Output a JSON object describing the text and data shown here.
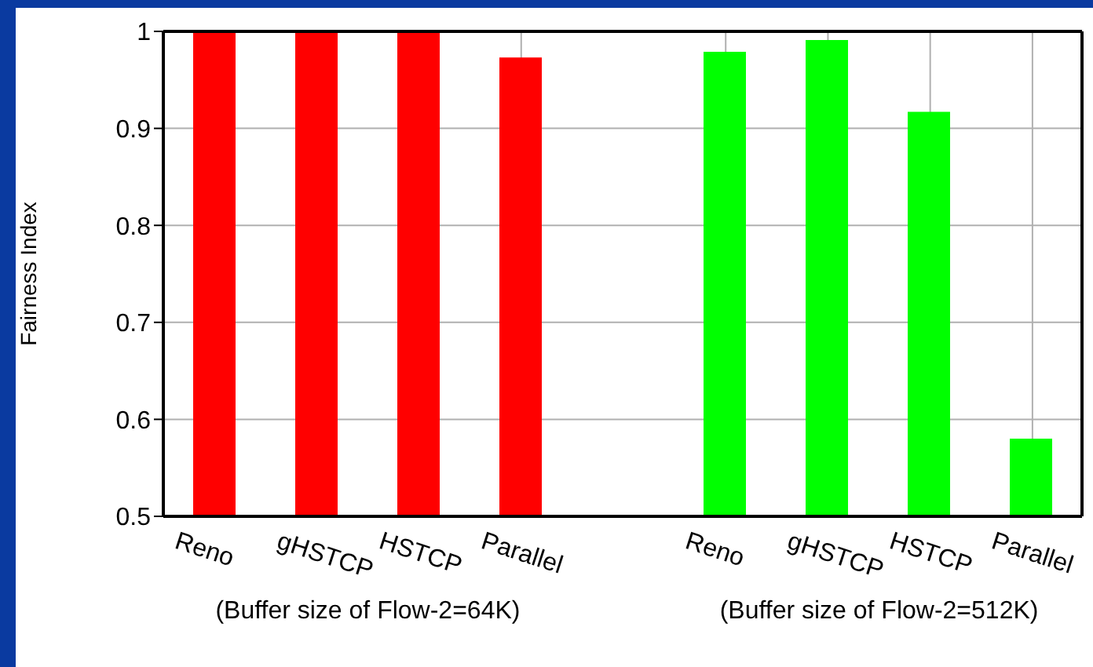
{
  "chart_data": {
    "type": "bar",
    "ylabel": "Fairness Index",
    "categories": [
      "Reno",
      "gHSTCP",
      "HSTCP",
      "Parallel",
      null,
      "Reno",
      "gHSTCP",
      "HSTCP",
      "Parallel"
    ],
    "values": [
      1,
      1,
      1,
      0.973,
      null,
      0.979,
      0.991,
      0.917,
      0.58
    ],
    "colors": [
      "#ff0000",
      "#ff0000",
      "#ff0000",
      "#ff0000",
      "#ff0000",
      "#00ff00",
      "#00ff00",
      "#00ff00",
      "#00ff00"
    ],
    "ylim": [
      0.5,
      1
    ],
    "yticks": [
      0.5,
      0.6,
      0.7,
      0.8,
      0.9,
      1
    ],
    "grid": true,
    "annotations": [
      "(Buffer size of Flow-2=64K)",
      "(Buffer size of Flow-2=512K)"
    ]
  }
}
